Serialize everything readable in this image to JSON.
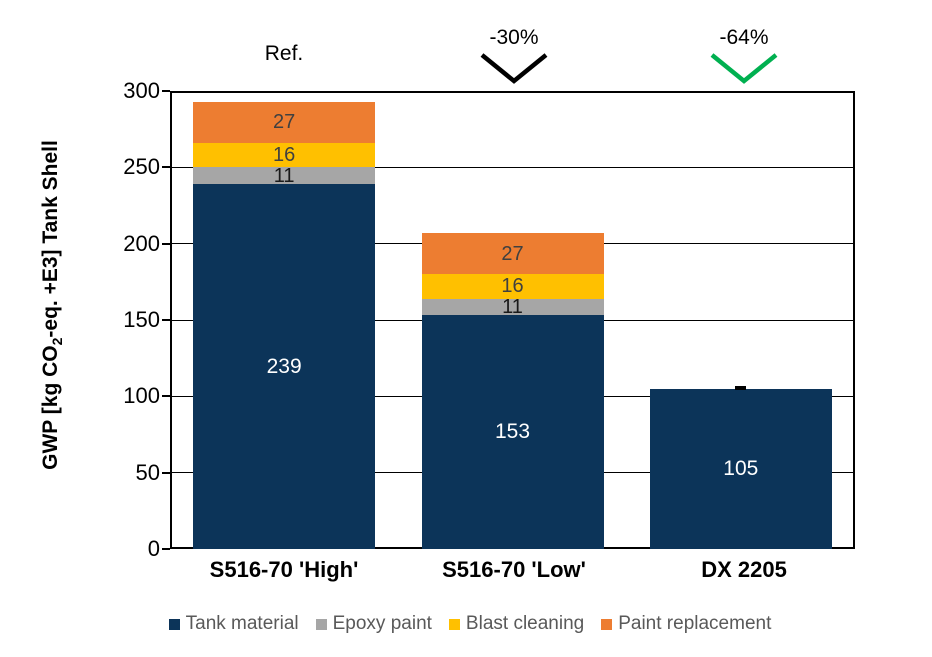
{
  "chart_data": {
    "type": "bar",
    "stacked": true,
    "categories": [
      "S516-70 'High'",
      "S516-70 'Low'",
      "DX 2205"
    ],
    "series": [
      {
        "name": "Tank material",
        "color": "#0c3459",
        "label_color": "#ffffff",
        "values": [
          239,
          153,
          105
        ]
      },
      {
        "name": "Epoxy paint",
        "color": "#a6a6a6",
        "label_color": "#1a1a1a",
        "values": [
          11,
          11,
          0
        ]
      },
      {
        "name": "Blast cleaning",
        "color": "#ffc000",
        "label_color": "#404040",
        "values": [
          16,
          16,
          0
        ]
      },
      {
        "name": "Paint replacement",
        "color": "#ed7d31",
        "label_color": "#404040",
        "values": [
          27,
          27,
          0
        ]
      }
    ],
    "ylabel_prefix": "GWP [kg CO",
    "ylabel_sub": "2",
    "ylabel_suffix": "-eq. +E3] Tank Shell",
    "ylim": [
      0,
      300
    ],
    "yticks": [
      0,
      50,
      100,
      150,
      200,
      250,
      300
    ],
    "grid": true,
    "legend_position": "bottom",
    "annotations": [
      {
        "text": "Ref.",
        "bar": 0,
        "chevron": false,
        "chevron_color": ""
      },
      {
        "text": "-30%",
        "bar": 1,
        "chevron": true,
        "chevron_color": "#000000"
      },
      {
        "text": "-64%",
        "bar": 2,
        "chevron": true,
        "chevron_color": "#00b050"
      }
    ],
    "zero_dash_label": {
      "bar": 2,
      "text": "-"
    },
    "colors": {
      "axis": "#000000",
      "background": "#ffffff"
    }
  }
}
